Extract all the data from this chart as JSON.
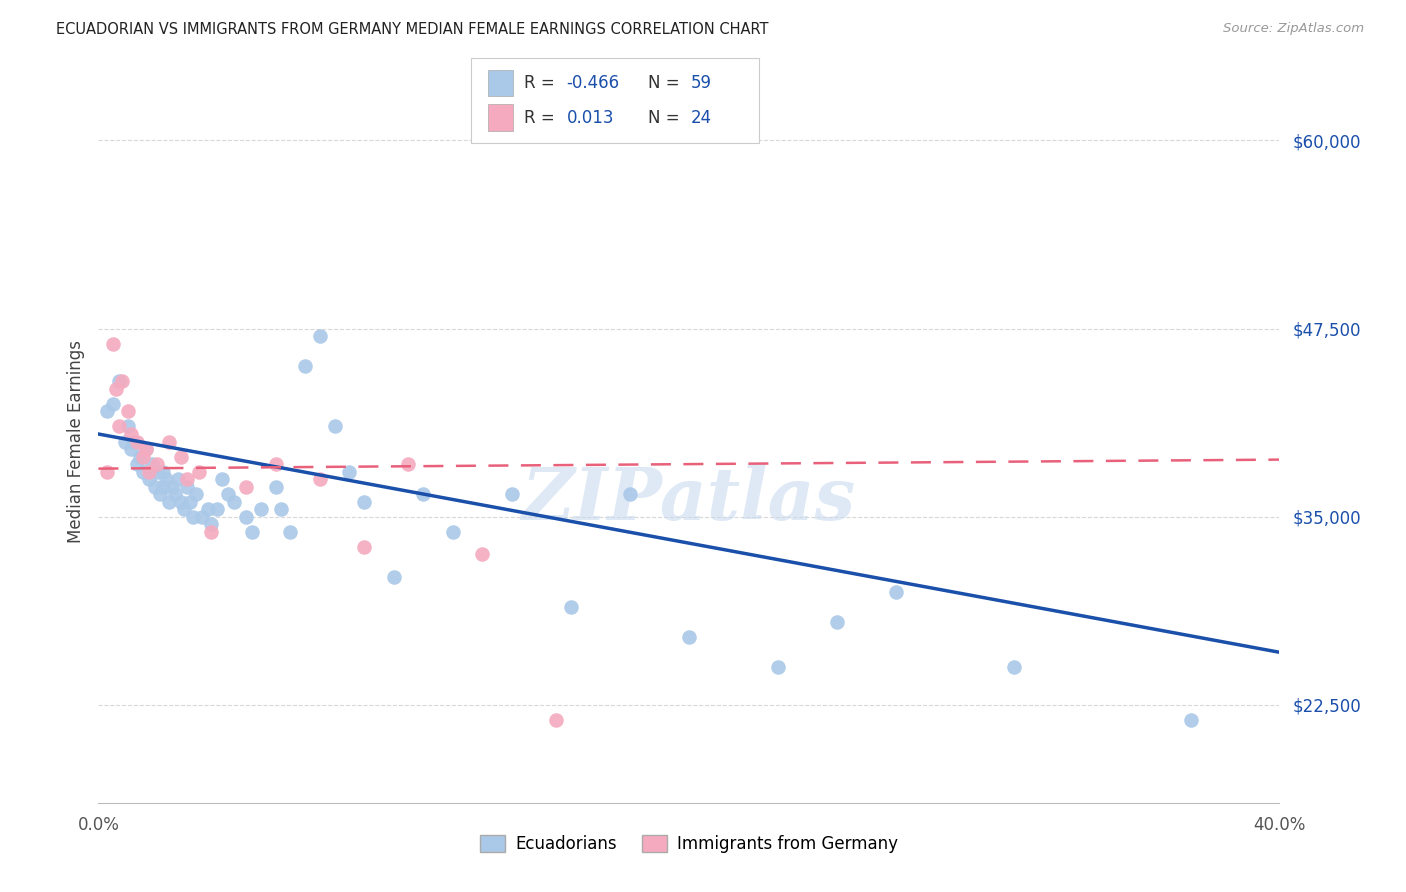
{
  "title": "ECUADORIAN VS IMMIGRANTS FROM GERMANY MEDIAN FEMALE EARNINGS CORRELATION CHART",
  "source": "Source: ZipAtlas.com",
  "ylabel": "Median Female Earnings",
  "yticks": [
    22500,
    35000,
    47500,
    60000
  ],
  "ytick_labels": [
    "$22,500",
    "$35,000",
    "$47,500",
    "$60,000"
  ],
  "xmin": 0.0,
  "xmax": 0.4,
  "ymin": 16000,
  "ymax": 64000,
  "blue_r": "-0.466",
  "blue_n": "59",
  "pink_r": "0.013",
  "pink_n": "24",
  "blue_color": "#aac8e8",
  "pink_color": "#f5aabf",
  "blue_line_color": "#1a4faa",
  "pink_line_color": "#e8607a",
  "legend_label_blue": "Ecuadorians",
  "legend_label_pink": "Immigrants from Germany",
  "blue_scatter_x": [
    0.003,
    0.005,
    0.007,
    0.009,
    0.01,
    0.011,
    0.012,
    0.013,
    0.014,
    0.015,
    0.016,
    0.017,
    0.018,
    0.019,
    0.02,
    0.021,
    0.022,
    0.022,
    0.023,
    0.024,
    0.025,
    0.026,
    0.027,
    0.028,
    0.029,
    0.03,
    0.031,
    0.032,
    0.033,
    0.035,
    0.037,
    0.038,
    0.04,
    0.042,
    0.044,
    0.046,
    0.05,
    0.052,
    0.055,
    0.06,
    0.062,
    0.065,
    0.07,
    0.075,
    0.08,
    0.085,
    0.09,
    0.1,
    0.11,
    0.12,
    0.14,
    0.16,
    0.18,
    0.2,
    0.23,
    0.25,
    0.27,
    0.31,
    0.37
  ],
  "blue_scatter_y": [
    42000,
    42500,
    44000,
    40000,
    41000,
    39500,
    40000,
    38500,
    39000,
    38000,
    39500,
    37500,
    38500,
    37000,
    38000,
    36500,
    37000,
    38000,
    37500,
    36000,
    37000,
    36500,
    37500,
    36000,
    35500,
    37000,
    36000,
    35000,
    36500,
    35000,
    35500,
    34500,
    35500,
    37500,
    36500,
    36000,
    35000,
    34000,
    35500,
    37000,
    35500,
    34000,
    45000,
    47000,
    41000,
    38000,
    36000,
    31000,
    36500,
    34000,
    36500,
    29000,
    36500,
    27000,
    25000,
    28000,
    30000,
    25000,
    21500
  ],
  "pink_scatter_x": [
    0.003,
    0.005,
    0.006,
    0.007,
    0.008,
    0.01,
    0.011,
    0.013,
    0.015,
    0.016,
    0.017,
    0.02,
    0.024,
    0.028,
    0.03,
    0.034,
    0.038,
    0.05,
    0.06,
    0.075,
    0.09,
    0.105,
    0.13,
    0.155
  ],
  "pink_scatter_y": [
    38000,
    46500,
    43500,
    41000,
    44000,
    42000,
    40500,
    40000,
    39000,
    39500,
    38000,
    38500,
    40000,
    39000,
    37500,
    38000,
    34000,
    37000,
    38500,
    37500,
    33000,
    38500,
    32500,
    21500
  ],
  "watermark": "ZIPatlas",
  "background_color": "#ffffff",
  "grid_color": "#d8d8d8"
}
